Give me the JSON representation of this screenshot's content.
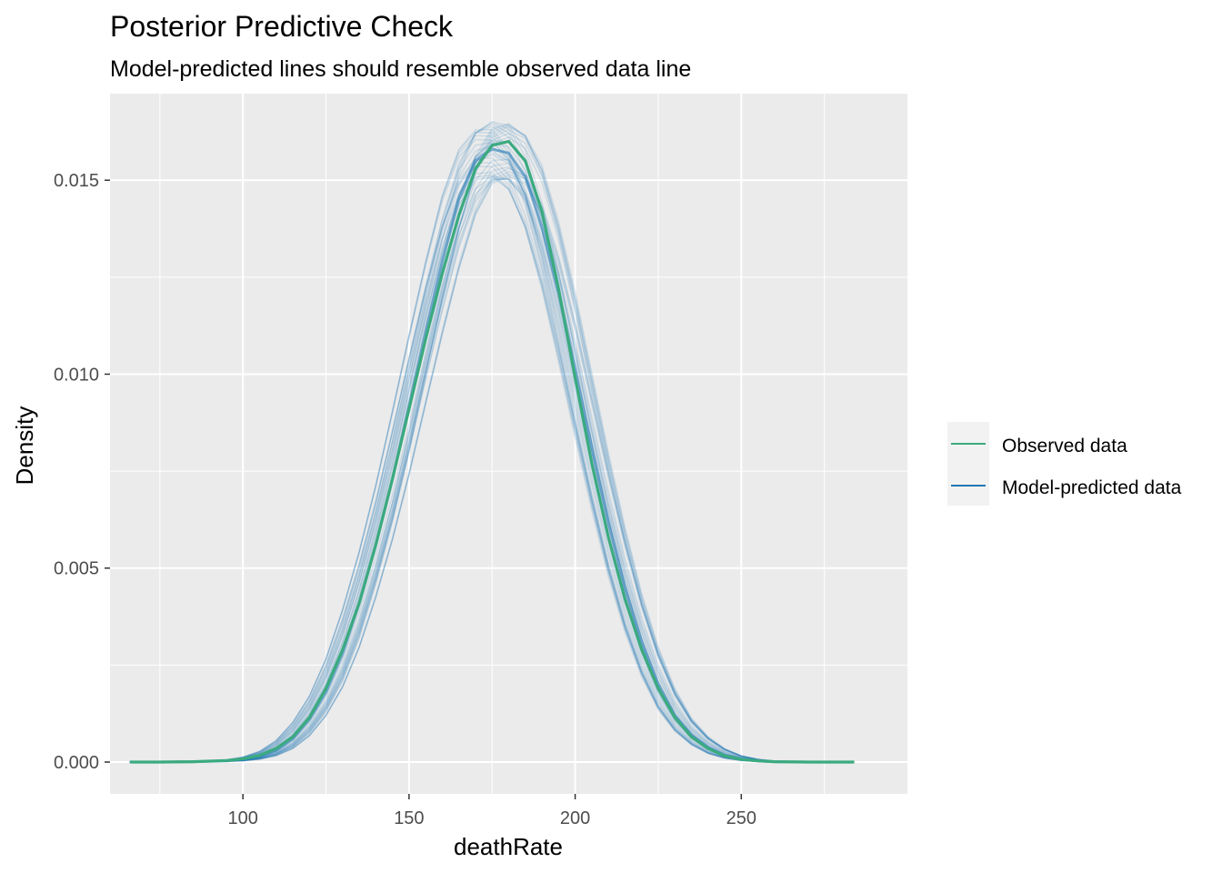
{
  "chart_data": {
    "type": "line",
    "title": "Posterior Predictive Check",
    "subtitle": "Model-predicted lines should resemble observed data line",
    "xlabel": "deathRate",
    "ylabel": "Density",
    "xlim": [
      60.0,
      300.0
    ],
    "ylim": [
      0.0,
      0.0162
    ],
    "x_ticks": [
      100,
      150,
      200,
      250
    ],
    "x_tick_labels": [
      "100",
      "150",
      "200",
      "250"
    ],
    "y_ticks": [
      0.0,
      0.005,
      0.01,
      0.015
    ],
    "y_tick_labels": [
      "0.000",
      "0.005",
      "0.010",
      "0.015"
    ],
    "grid": true,
    "legend_position": "right",
    "colors": {
      "observed": "#3aaa7f",
      "predicted": "#1f78b4",
      "panel_bg": "#ebebeb",
      "legend_key_bg": "#f2f2f2",
      "grid": "#ffffff"
    },
    "series": [
      {
        "name": "Observed data",
        "x": [
          66,
          75,
          85,
          95,
          100,
          105,
          110,
          115,
          120,
          125,
          130,
          135,
          140,
          145,
          150,
          155,
          160,
          165,
          170,
          175,
          180,
          185,
          190,
          195,
          200,
          205,
          210,
          215,
          220,
          225,
          230,
          235,
          240,
          245,
          250,
          255,
          260,
          270,
          284
        ],
        "y": [
          0.0,
          0.0,
          1e-05,
          4e-05,
          8e-05,
          0.00017,
          0.00035,
          0.00065,
          0.00115,
          0.0019,
          0.0029,
          0.0041,
          0.0056,
          0.0073,
          0.0091,
          0.0109,
          0.0126,
          0.0141,
          0.0153,
          0.0159,
          0.016,
          0.0155,
          0.0142,
          0.0122,
          0.0099,
          0.0077,
          0.0058,
          0.0042,
          0.0029,
          0.0019,
          0.00115,
          0.00065,
          0.00035,
          0.00016,
          7e-05,
          3e-05,
          1e-05,
          0.0,
          0.0
        ]
      },
      {
        "name": "Model-predicted data",
        "x": [
          66,
          75,
          85,
          95,
          100,
          105,
          110,
          115,
          120,
          125,
          130,
          135,
          140,
          145,
          150,
          155,
          160,
          165,
          170,
          175,
          180,
          185,
          190,
          195,
          200,
          205,
          210,
          215,
          220,
          225,
          230,
          235,
          240,
          245,
          250,
          255,
          260,
          270,
          284
        ],
        "y": [
          0.0,
          0.0,
          1e-05,
          3e-05,
          6e-05,
          0.00014,
          0.0003,
          0.0006,
          0.0011,
          0.0018,
          0.0028,
          0.0041,
          0.0056,
          0.0073,
          0.0092,
          0.0111,
          0.0129,
          0.0145,
          0.0155,
          0.0158,
          0.0157,
          0.0151,
          0.0138,
          0.0121,
          0.0101,
          0.0081,
          0.0062,
          0.0045,
          0.0031,
          0.002,
          0.0012,
          0.0007,
          0.00038,
          0.00018,
          8e-05,
          3e-05,
          1e-05,
          0.0,
          0.0
        ]
      }
    ],
    "legend": {
      "entries": [
        "Observed data",
        "Model-predicted data"
      ]
    }
  }
}
